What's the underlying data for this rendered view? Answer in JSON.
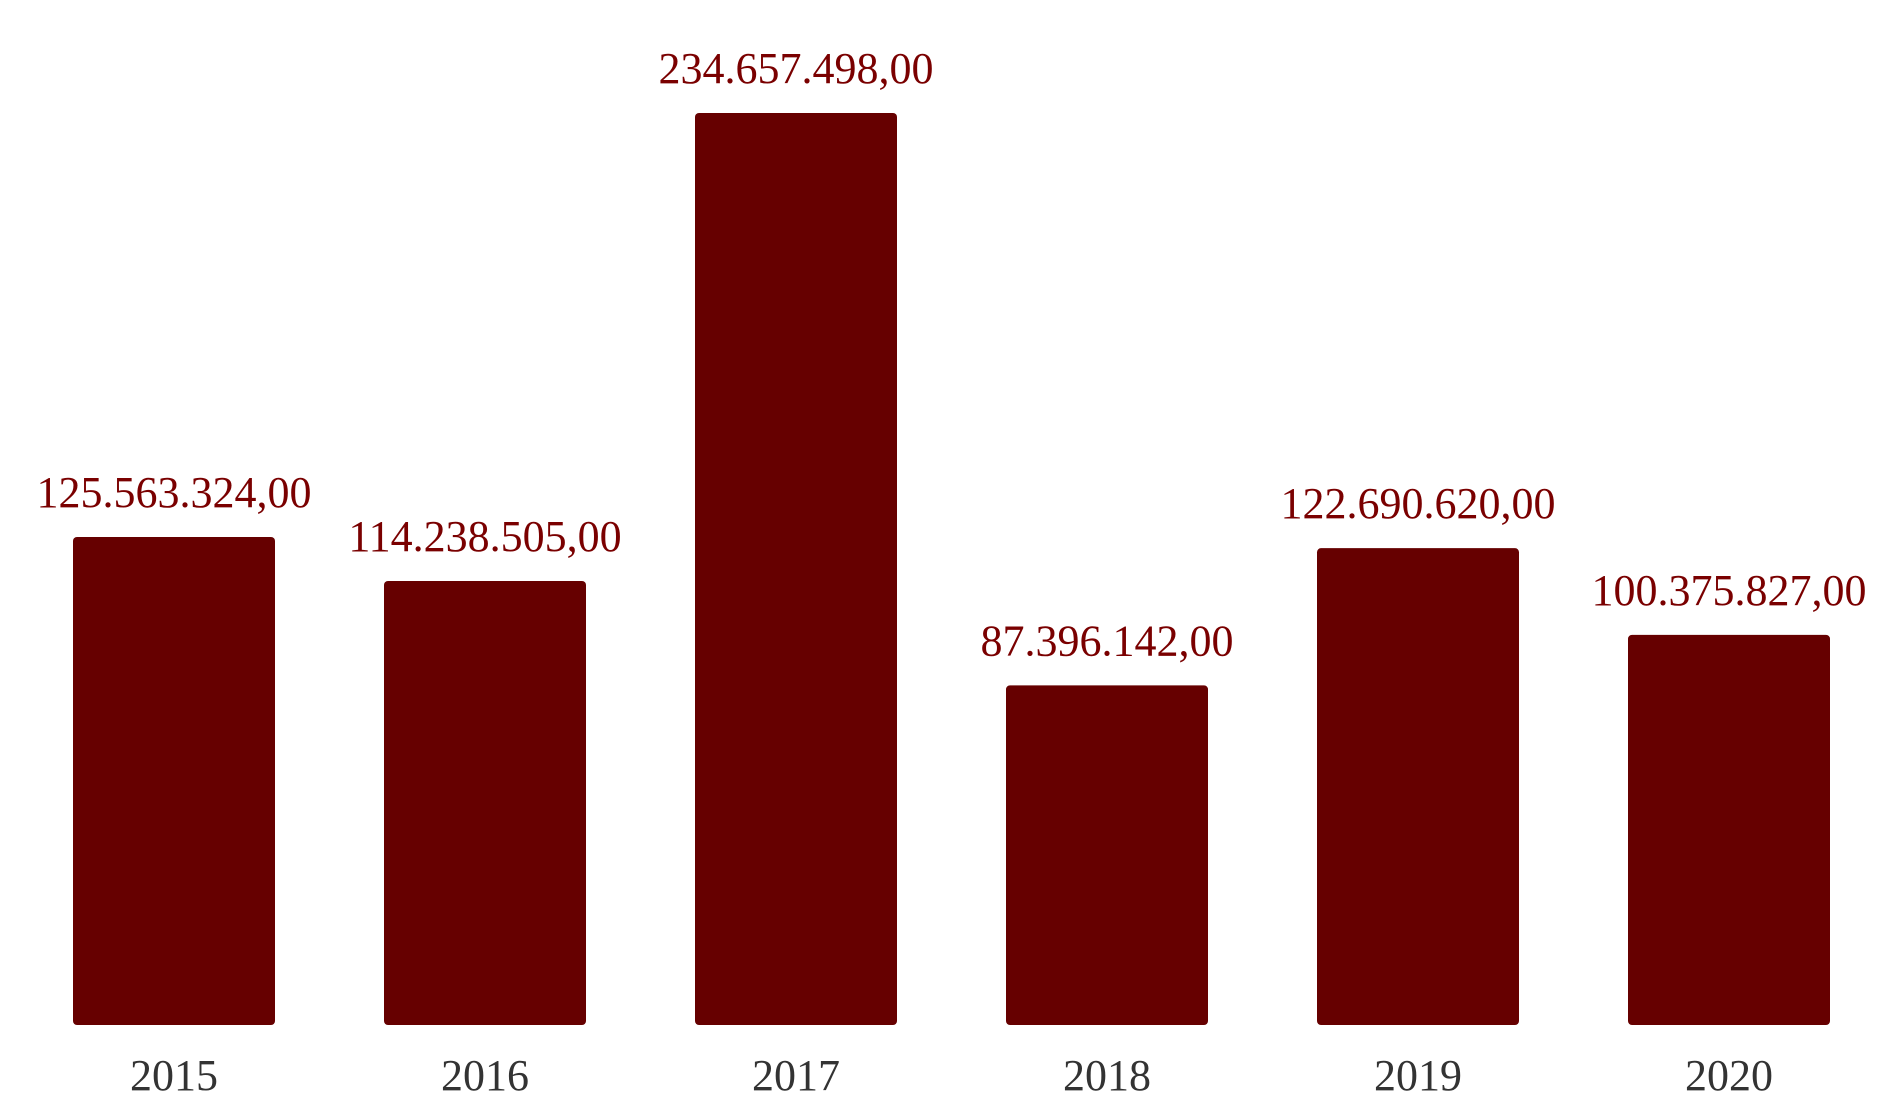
{
  "chart_data": {
    "type": "bar",
    "categories": [
      "2015",
      "2016",
      "2017",
      "2018",
      "2019",
      "2020"
    ],
    "values": [
      125563324.0,
      114238505.0,
      234657498.0,
      87396142.0,
      122690620.0,
      100375827.0
    ],
    "data_labels": [
      "125.563.324,00",
      "114.238.505,00",
      "234.657.498,00",
      "87.396.142,00",
      "122.690.620,00",
      "100.375.827,00"
    ],
    "title": "",
    "xlabel": "",
    "ylabel": "",
    "ylim": [
      0,
      234657498
    ],
    "grid": false,
    "legend": "none",
    "colors": {
      "bar": "#660000",
      "data_label": "#7a0000",
      "tick_label": "#333333"
    }
  }
}
